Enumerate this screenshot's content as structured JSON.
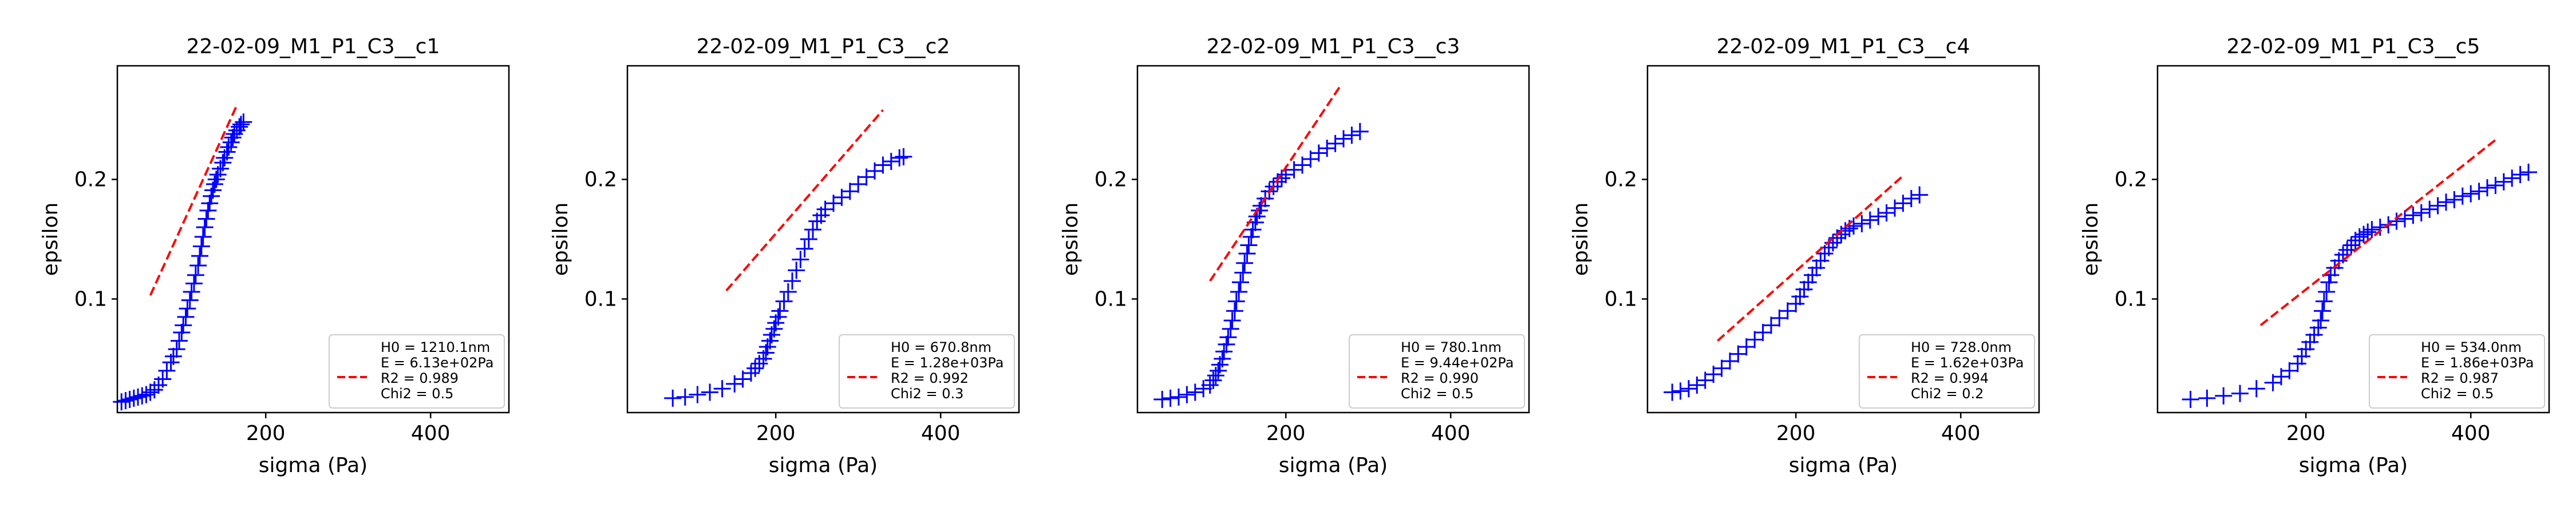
{
  "figure": {
    "colors": {
      "data": "#0000ff",
      "fit": "#ff0000",
      "frame": "#000000",
      "legend_border": "#cccccc"
    }
  },
  "chart_data": [
    {
      "type": "scatter",
      "title": "22-02-09_M1_P1_C3__c1",
      "xlabel": "sigma (Pa)",
      "ylabel": "epsilon",
      "xlim": [
        20,
        495
      ],
      "ylim": [
        0.005,
        0.295
      ],
      "xticks": [
        200,
        400
      ],
      "yticks": [
        0.1,
        0.2
      ],
      "grid": false,
      "legend_position": "lower-right",
      "legend": [
        "H0 = 1210.1nm",
        "E = 6.13e+02Pa",
        "R2 = 0.989",
        "Chi2 = 0.5"
      ],
      "series": [
        {
          "kind": "markers",
          "marker": "+",
          "x": [
            25,
            30,
            35,
            40,
            45,
            50,
            55,
            60,
            65,
            70,
            75,
            80,
            85,
            88,
            92,
            95,
            98,
            100,
            103,
            105,
            108,
            110,
            113,
            115,
            118,
            120,
            122,
            124,
            126,
            128,
            130,
            132,
            134,
            136,
            138,
            140,
            142,
            145,
            148,
            150,
            153,
            155,
            158,
            160,
            162,
            165,
            168,
            170,
            173
          ],
          "y": [
            0.014,
            0.015,
            0.016,
            0.017,
            0.018,
            0.019,
            0.02,
            0.022,
            0.024,
            0.028,
            0.033,
            0.04,
            0.047,
            0.052,
            0.058,
            0.065,
            0.072,
            0.078,
            0.085,
            0.092,
            0.099,
            0.106,
            0.113,
            0.12,
            0.128,
            0.136,
            0.144,
            0.152,
            0.16,
            0.167,
            0.174,
            0.18,
            0.186,
            0.191,
            0.196,
            0.2,
            0.204,
            0.209,
            0.214,
            0.218,
            0.223,
            0.227,
            0.231,
            0.235,
            0.238,
            0.241,
            0.244,
            0.246,
            0.248
          ]
        },
        {
          "kind": "line",
          "style": "dashed",
          "x": [
            60,
            165
          ],
          "y": [
            0.103,
            0.262
          ]
        }
      ]
    },
    {
      "type": "scatter",
      "title": "22-02-09_M1_P1_C3__c2",
      "xlabel": "sigma (Pa)",
      "ylabel": "epsilon",
      "xlim": [
        20,
        495
      ],
      "ylim": [
        0.005,
        0.295
      ],
      "xticks": [
        200,
        400
      ],
      "yticks": [
        0.1,
        0.2
      ],
      "grid": false,
      "legend_position": "lower-right",
      "legend": [
        "H0 = 670.8nm",
        "E = 1.28e+03Pa",
        "R2 = 0.992",
        "Chi2 = 0.3"
      ],
      "series": [
        {
          "kind": "markers",
          "marker": "+",
          "x": [
            75,
            90,
            105,
            120,
            135,
            150,
            160,
            170,
            175,
            180,
            185,
            188,
            190,
            193,
            195,
            198,
            200,
            203,
            205,
            210,
            215,
            220,
            225,
            230,
            235,
            240,
            245,
            250,
            255,
            260,
            270,
            280,
            290,
            300,
            310,
            320,
            330,
            340,
            350,
            355
          ],
          "y": [
            0.017,
            0.018,
            0.02,
            0.022,
            0.025,
            0.029,
            0.033,
            0.038,
            0.042,
            0.046,
            0.05,
            0.055,
            0.06,
            0.065,
            0.07,
            0.075,
            0.08,
            0.085,
            0.09,
            0.098,
            0.106,
            0.115,
            0.124,
            0.133,
            0.142,
            0.15,
            0.158,
            0.165,
            0.17,
            0.175,
            0.18,
            0.185,
            0.19,
            0.196,
            0.202,
            0.207,
            0.212,
            0.215,
            0.218,
            0.219
          ]
        },
        {
          "kind": "line",
          "style": "dashed",
          "x": [
            140,
            330
          ],
          "y": [
            0.107,
            0.258
          ]
        }
      ]
    },
    {
      "type": "scatter",
      "title": "22-02-09_M1_P1_C3__c3",
      "xlabel": "sigma (Pa)",
      "ylabel": "epsilon",
      "xlim": [
        20,
        495
      ],
      "ylim": [
        0.005,
        0.295
      ],
      "xticks": [
        200,
        400
      ],
      "yticks": [
        0.1,
        0.2
      ],
      "grid": false,
      "legend_position": "lower-right",
      "legend": [
        "H0 = 780.1nm",
        "E = 9.44e+02Pa",
        "R2 = 0.990",
        "Chi2 = 0.5"
      ],
      "series": [
        {
          "kind": "markers",
          "marker": "+",
          "x": [
            50,
            60,
            70,
            80,
            90,
            100,
            108,
            112,
            115,
            118,
            120,
            123,
            125,
            128,
            130,
            133,
            135,
            138,
            140,
            143,
            145,
            148,
            150,
            153,
            155,
            158,
            160,
            163,
            165,
            168,
            170,
            175,
            180,
            185,
            190,
            195,
            200,
            210,
            220,
            230,
            240,
            250,
            260,
            270,
            280,
            290
          ],
          "y": [
            0.016,
            0.017,
            0.018,
            0.02,
            0.022,
            0.025,
            0.028,
            0.032,
            0.036,
            0.04,
            0.045,
            0.05,
            0.056,
            0.062,
            0.068,
            0.075,
            0.082,
            0.09,
            0.098,
            0.106,
            0.114,
            0.122,
            0.13,
            0.138,
            0.145,
            0.152,
            0.158,
            0.164,
            0.169,
            0.174,
            0.178,
            0.184,
            0.19,
            0.194,
            0.198,
            0.201,
            0.204,
            0.208,
            0.212,
            0.217,
            0.222,
            0.226,
            0.23,
            0.234,
            0.237,
            0.24
          ]
        },
        {
          "kind": "line",
          "style": "dashed",
          "x": [
            108,
            265
          ],
          "y": [
            0.115,
            0.277
          ]
        }
      ]
    },
    {
      "type": "scatter",
      "title": "22-02-09_M1_P1_C3__c4",
      "xlabel": "sigma (Pa)",
      "ylabel": "epsilon",
      "xlim": [
        20,
        495
      ],
      "ylim": [
        0.005,
        0.295
      ],
      "xticks": [
        200,
        400
      ],
      "yticks": [
        0.1,
        0.2
      ],
      "grid": false,
      "legend_position": "lower-right",
      "legend": [
        "H0 = 728.0nm",
        "E = 1.62e+03Pa",
        "R2 = 0.994",
        "Chi2 = 0.2"
      ],
      "series": [
        {
          "kind": "markers",
          "marker": "+",
          "x": [
            50,
            60,
            70,
            80,
            90,
            100,
            110,
            120,
            130,
            140,
            150,
            160,
            170,
            180,
            190,
            200,
            205,
            210,
            215,
            220,
            225,
            230,
            235,
            240,
            245,
            250,
            255,
            260,
            265,
            270,
            280,
            290,
            300,
            310,
            320,
            330,
            340,
            350
          ],
          "y": [
            0.022,
            0.023,
            0.025,
            0.028,
            0.032,
            0.037,
            0.042,
            0.048,
            0.054,
            0.06,
            0.066,
            0.072,
            0.078,
            0.084,
            0.09,
            0.096,
            0.102,
            0.108,
            0.114,
            0.12,
            0.126,
            0.132,
            0.138,
            0.143,
            0.147,
            0.151,
            0.154,
            0.157,
            0.159,
            0.161,
            0.163,
            0.166,
            0.169,
            0.172,
            0.176,
            0.18,
            0.184,
            0.187
          ]
        },
        {
          "kind": "line",
          "style": "dashed",
          "x": [
            105,
            330
          ],
          "y": [
            0.065,
            0.203
          ]
        }
      ]
    },
    {
      "type": "scatter",
      "title": "22-02-09_M1_P1_C3__c5",
      "xlabel": "sigma (Pa)",
      "ylabel": "epsilon",
      "xlim": [
        20,
        495
      ],
      "ylim": [
        0.005,
        0.295
      ],
      "xticks": [
        200,
        400
      ],
      "yticks": [
        0.1,
        0.2
      ],
      "grid": false,
      "legend_position": "lower-right",
      "legend": [
        "H0 = 534.0nm",
        "E = 1.86e+03Pa",
        "R2 = 0.987",
        "Chi2 = 0.5"
      ],
      "series": [
        {
          "kind": "markers",
          "marker": "+",
          "x": [
            60,
            80,
            100,
            120,
            140,
            160,
            170,
            180,
            190,
            195,
            200,
            205,
            210,
            215,
            218,
            220,
            222,
            225,
            228,
            230,
            235,
            240,
            245,
            250,
            255,
            260,
            265,
            270,
            275,
            280,
            290,
            300,
            310,
            320,
            330,
            340,
            350,
            360,
            370,
            380,
            390,
            400,
            410,
            420,
            430,
            440,
            450,
            460,
            470
          ],
          "y": [
            0.016,
            0.017,
            0.019,
            0.021,
            0.025,
            0.03,
            0.035,
            0.04,
            0.046,
            0.052,
            0.058,
            0.064,
            0.07,
            0.076,
            0.082,
            0.09,
            0.098,
            0.106,
            0.114,
            0.12,
            0.126,
            0.132,
            0.137,
            0.141,
            0.145,
            0.149,
            0.152,
            0.154,
            0.156,
            0.158,
            0.16,
            0.162,
            0.165,
            0.167,
            0.17,
            0.172,
            0.175,
            0.178,
            0.181,
            0.183,
            0.186,
            0.188,
            0.19,
            0.193,
            0.195,
            0.198,
            0.201,
            0.204,
            0.206
          ]
        },
        {
          "kind": "line",
          "style": "dashed",
          "x": [
            145,
            430
          ],
          "y": [
            0.078,
            0.233
          ]
        }
      ]
    }
  ]
}
